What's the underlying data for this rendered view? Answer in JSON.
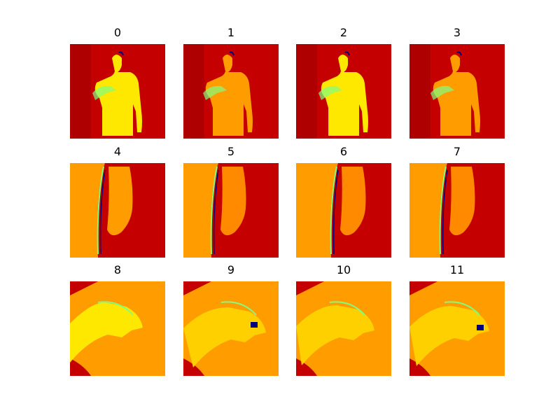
{
  "figure": {
    "panels": [
      {
        "title": "0",
        "scene": "person",
        "variant": 0
      },
      {
        "title": "1",
        "scene": "person",
        "variant": 1
      },
      {
        "title": "2",
        "scene": "person",
        "variant": 2
      },
      {
        "title": "3",
        "scene": "person",
        "variant": 3
      },
      {
        "title": "4",
        "scene": "arm",
        "variant": 0
      },
      {
        "title": "5",
        "scene": "arm",
        "variant": 1
      },
      {
        "title": "6",
        "scene": "arm",
        "variant": 2
      },
      {
        "title": "7",
        "scene": "arm",
        "variant": 3
      },
      {
        "title": "8",
        "scene": "hand",
        "variant": 0
      },
      {
        "title": "9",
        "scene": "hand",
        "variant": 1
      },
      {
        "title": "10",
        "scene": "hand",
        "variant": 2
      },
      {
        "title": "11",
        "scene": "hand",
        "variant": 3
      }
    ],
    "colors": {
      "background_dark": "#a50000",
      "background_red": "#c40000",
      "body_orange": "#ff9c00",
      "body_yellow": "#ffe800",
      "edge_cyan": "#7fff7f",
      "edge_blue": "#00007f"
    }
  }
}
